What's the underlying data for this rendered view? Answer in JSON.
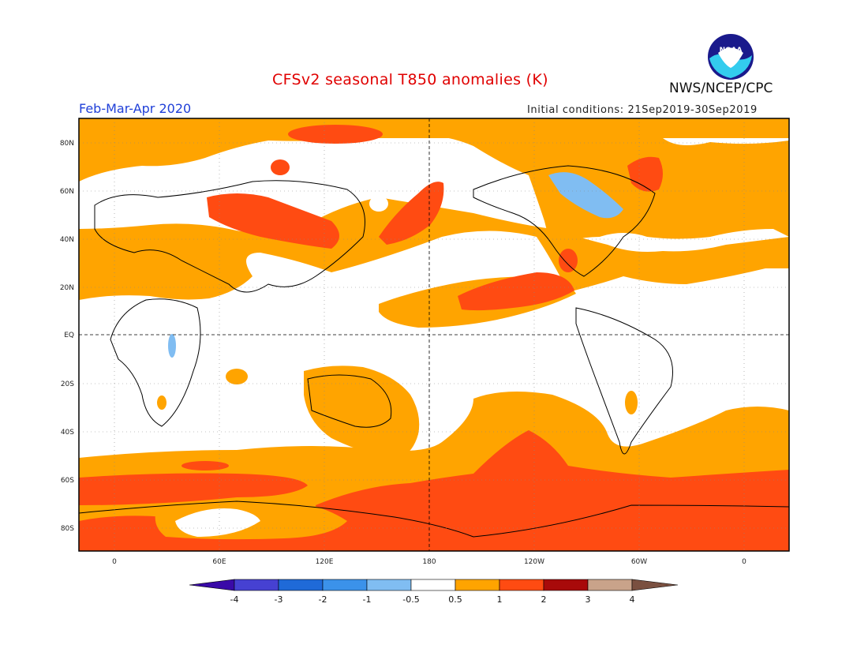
{
  "header": {
    "title": "CFSv2 seasonal T850 anomalies (K)",
    "season": "Feb-Mar-Apr 2020",
    "initial_conditions": "Initial conditions: 21Sep2019-30Sep2019",
    "agency": "NWS/NCEP/CPC",
    "logo_text": "NOAA"
  },
  "map": {
    "y_ticks": [
      "80N",
      "60N",
      "40N",
      "20N",
      "EQ",
      "20S",
      "40S",
      "60S",
      "80S"
    ],
    "x_ticks": [
      "0",
      "60E",
      "120E",
      "180",
      "120W",
      "60W",
      "0"
    ]
  },
  "colorbar": {
    "labels": [
      "-4",
      "-3",
      "-2",
      "-1",
      "-0.5",
      "0.5",
      "1",
      "2",
      "3",
      "4"
    ],
    "colors": [
      "#3a0aa8",
      "#4641d2",
      "#1f6ad8",
      "#3b92ea",
      "#80bdf2",
      "#ffffff",
      "#ffa400",
      "#ff4b12",
      "#a80a0a",
      "#c9a38a",
      "#7a5040"
    ]
  },
  "colors": {
    "warm1": "#ffa400",
    "warm2": "#ff4b12",
    "cool1": "#80bdf2",
    "neutral": "#ffffff"
  }
}
